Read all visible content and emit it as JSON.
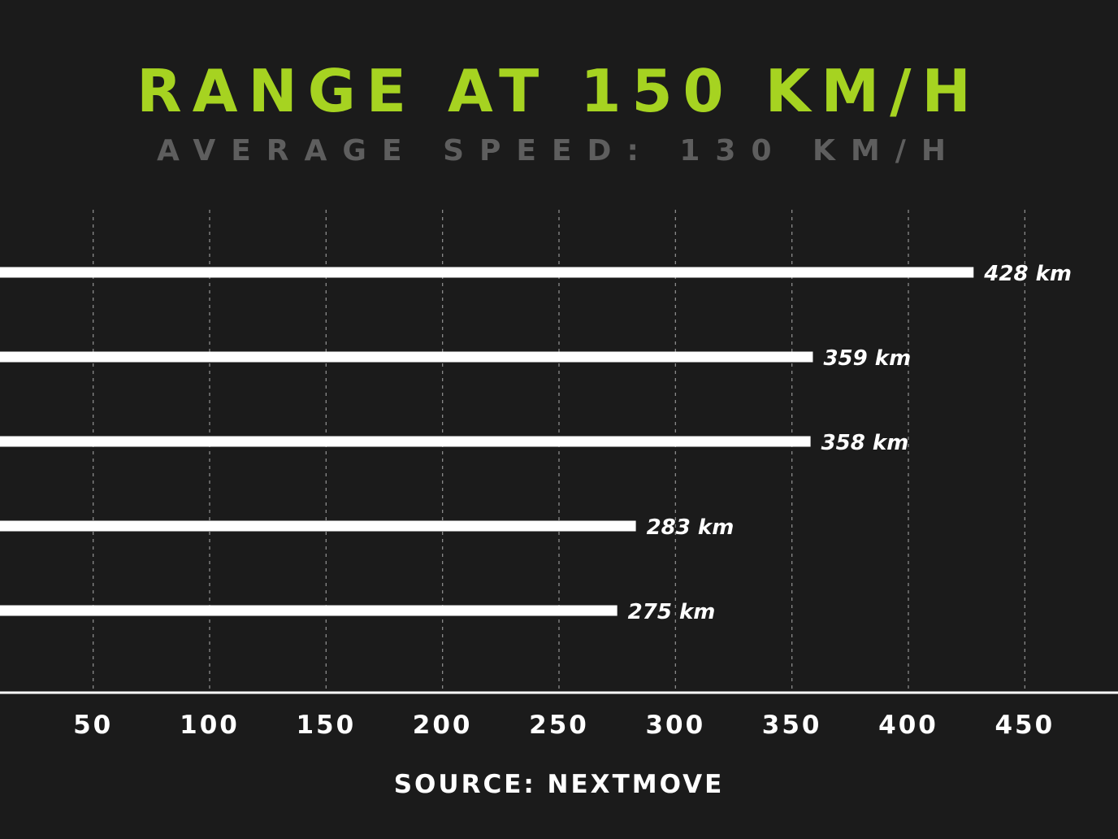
{
  "chart_data": {
    "type": "bar",
    "orientation": "horizontal",
    "title": "RANGE AT 150 KM/H",
    "subtitle": "AVERAGE SPEED: 130 KM/H",
    "source": "SOURCE: NEXTMOVE",
    "values": [
      428,
      359,
      358,
      283,
      275
    ],
    "data_labels": [
      "428 km",
      "359 km",
      "358 km",
      "283 km",
      "275 km"
    ],
    "x_ticks": [
      50,
      100,
      150,
      200,
      250,
      300,
      350,
      400,
      450
    ],
    "xlim": [
      10,
      490
    ],
    "grid": true
  },
  "colors": {
    "background": "#1b1b1b",
    "title": "#a6d321",
    "subtitle": "#5e5e5e",
    "bar": "#ffffff",
    "grid": "#8a8a8a",
    "text": "#ffffff"
  }
}
